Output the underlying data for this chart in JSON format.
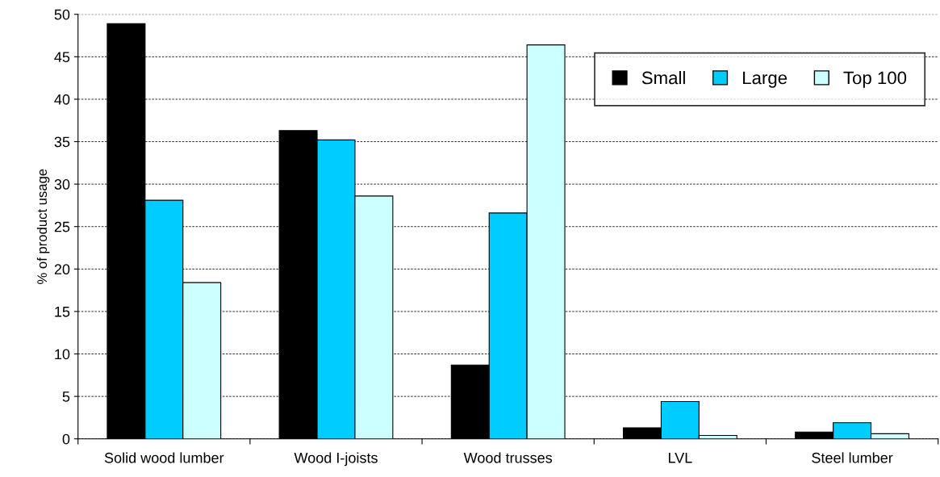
{
  "chart_data": {
    "type": "bar",
    "ylabel": "% of product usage",
    "categories": [
      "Solid wood lumber",
      "Wood I-joists",
      "Wood trusses",
      "LVL",
      "Steel lumber"
    ],
    "series": [
      {
        "name": "Small",
        "color": "#000000",
        "values": [
          48.9,
          36.3,
          8.7,
          1.3,
          0.8
        ]
      },
      {
        "name": "Large",
        "color": "#00ccff",
        "values": [
          28.1,
          35.2,
          26.6,
          4.4,
          1.9
        ]
      },
      {
        "name": "Top 100",
        "color": "#ccffff",
        "values": [
          18.4,
          28.6,
          46.4,
          0.4,
          0.6
        ]
      }
    ],
    "ylim": [
      0,
      50
    ],
    "yticks": [
      0,
      5,
      10,
      15,
      20,
      25,
      30,
      35,
      40,
      45,
      50
    ],
    "grid": "y",
    "legend": "top right"
  }
}
